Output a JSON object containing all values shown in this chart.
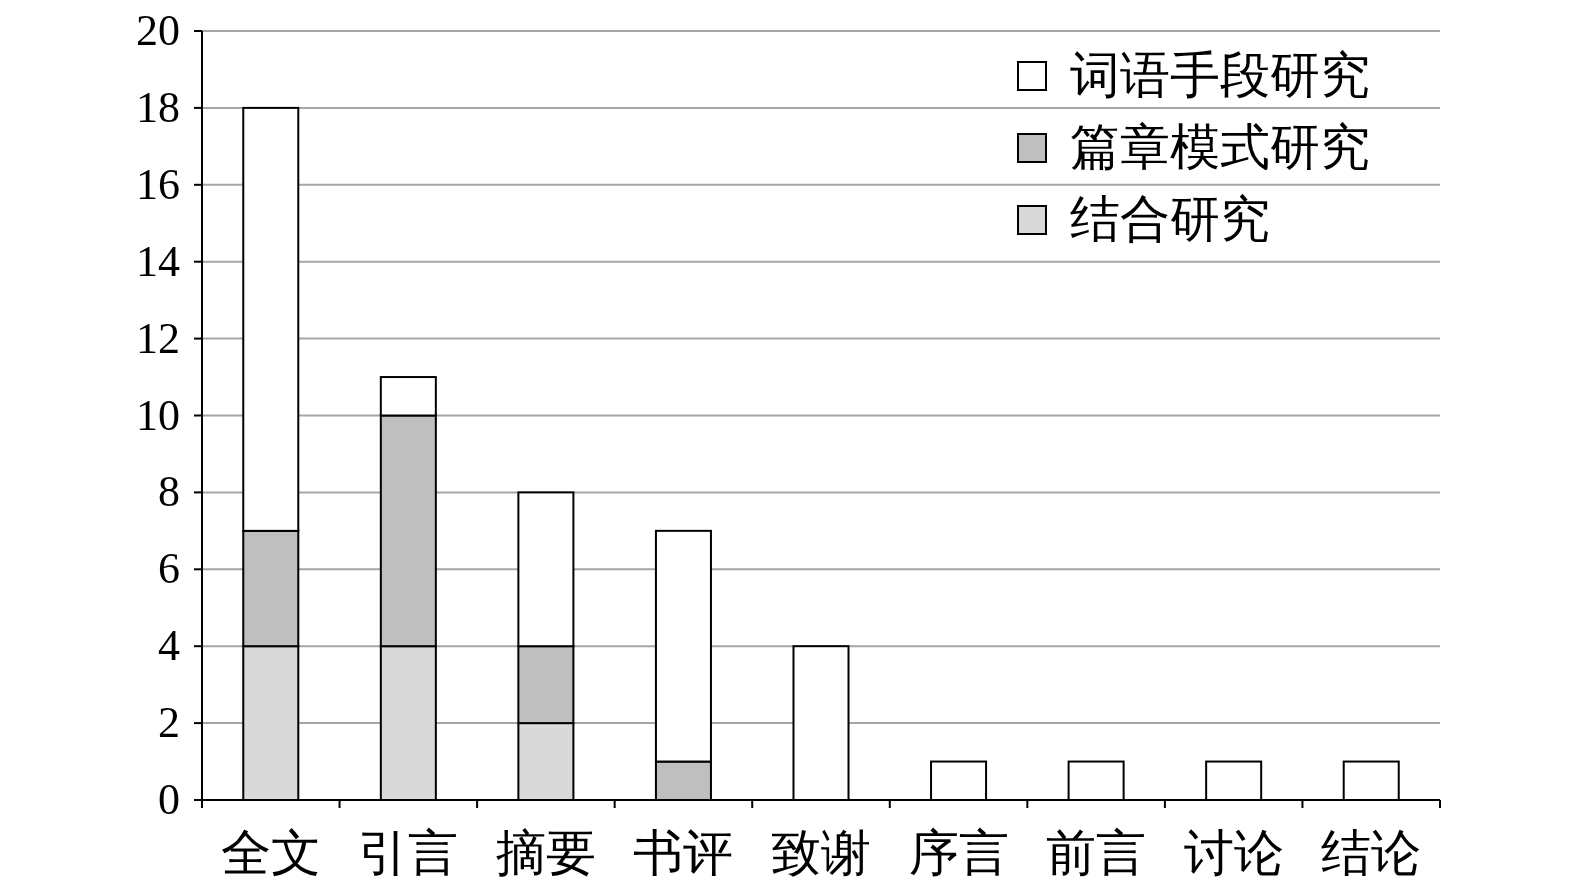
{
  "chart_data": {
    "type": "bar",
    "stacked": true,
    "categories": [
      "全文",
      "引言",
      "摘要",
      "书评",
      "致谢",
      "序言",
      "前言",
      "讨论",
      "结论"
    ],
    "series": [
      {
        "name": "结合研究",
        "color": "#d9d9d9",
        "values": [
          4,
          4,
          2,
          0,
          0,
          0,
          0,
          0,
          0
        ]
      },
      {
        "name": "篇章模式研究",
        "color": "#bfbfbf",
        "values": [
          3,
          6,
          2,
          1,
          0,
          0,
          0,
          0,
          0
        ]
      },
      {
        "name": "词语手段研究",
        "color": "#ffffff",
        "values": [
          11,
          1,
          4,
          6,
          4,
          1,
          1,
          1,
          1
        ]
      }
    ],
    "ylim": [
      0,
      20
    ],
    "yticks": [
      0,
      2,
      4,
      6,
      8,
      10,
      12,
      14,
      16,
      18,
      20
    ],
    "grid": "y",
    "legend": "top right"
  }
}
